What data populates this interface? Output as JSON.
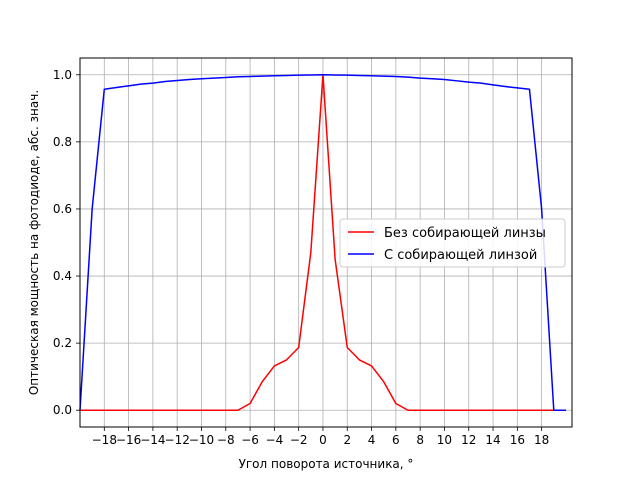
{
  "chart_data": {
    "type": "line",
    "xlabel": "Угол поворота источника, °",
    "ylabel": "Оптическая мощность на фотодиоде, абс. знач.",
    "xlim": [
      -20,
      20.5
    ],
    "ylim": [
      -0.05,
      1.05
    ],
    "x_ticks": [
      -18,
      -16,
      -14,
      -12,
      -10,
      -8,
      -6,
      -4,
      -2,
      0,
      2,
      4,
      6,
      8,
      10,
      12,
      14,
      16,
      18
    ],
    "x_tick_labels": [
      "−18",
      "−16",
      "−14",
      "−12",
      "−10",
      "−8",
      "−6",
      "−4",
      "−2",
      "0",
      "2",
      "4",
      "6",
      "8",
      "10",
      "12",
      "14",
      "16",
      "18"
    ],
    "y_ticks": [
      0.0,
      0.2,
      0.4,
      0.6,
      0.8,
      1.0
    ],
    "y_tick_labels": [
      "0.0",
      "0.2",
      "0.4",
      "0.6",
      "0.8",
      "1.0"
    ],
    "grid": true,
    "legend_position": "center-right",
    "series": [
      {
        "name": "Без собирающей линзы",
        "color": "#ff0000",
        "x": [
          -20,
          -19,
          -18,
          -17,
          -16,
          -15,
          -14,
          -13,
          -12,
          -11,
          -10,
          -9,
          -8,
          -7,
          -6,
          -5,
          -4,
          -3,
          -2,
          -1,
          0,
          1,
          2,
          3,
          4,
          5,
          6,
          7,
          8,
          9,
          10,
          11,
          12,
          13,
          14,
          15,
          16,
          17,
          18,
          19,
          20
        ],
        "values": [
          0,
          0,
          0,
          0,
          0,
          0,
          0,
          0,
          0,
          0,
          0,
          0,
          0,
          0,
          0.02,
          0.085,
          0.132,
          0.15,
          0.187,
          0.47,
          1.0,
          0.45,
          0.187,
          0.15,
          0.132,
          0.085,
          0.02,
          0,
          0,
          0,
          0,
          0,
          0,
          0,
          0,
          0,
          0,
          0,
          0,
          0,
          0
        ]
      },
      {
        "name": "С собирающей линзой",
        "color": "#0000ff",
        "x": [
          -20,
          -19,
          -18,
          -17,
          -16,
          -15,
          -14,
          -13,
          -12,
          -11,
          -10,
          -9,
          -8,
          -7,
          -6,
          -5,
          -4,
          -3,
          -2,
          -1,
          0,
          1,
          2,
          3,
          4,
          5,
          6,
          7,
          8,
          9,
          10,
          11,
          12,
          13,
          14,
          15,
          16,
          17,
          18,
          19,
          20
        ],
        "values": [
          0,
          0.6,
          0.957,
          0.962,
          0.967,
          0.972,
          0.975,
          0.98,
          0.983,
          0.986,
          0.988,
          0.99,
          0.992,
          0.994,
          0.995,
          0.996,
          0.997,
          0.998,
          0.999,
          0.9995,
          1.0,
          0.9995,
          0.999,
          0.998,
          0.997,
          0.996,
          0.995,
          0.993,
          0.99,
          0.988,
          0.986,
          0.982,
          0.978,
          0.975,
          0.97,
          0.965,
          0.961,
          0.957,
          0.6,
          0,
          0
        ]
      }
    ]
  }
}
